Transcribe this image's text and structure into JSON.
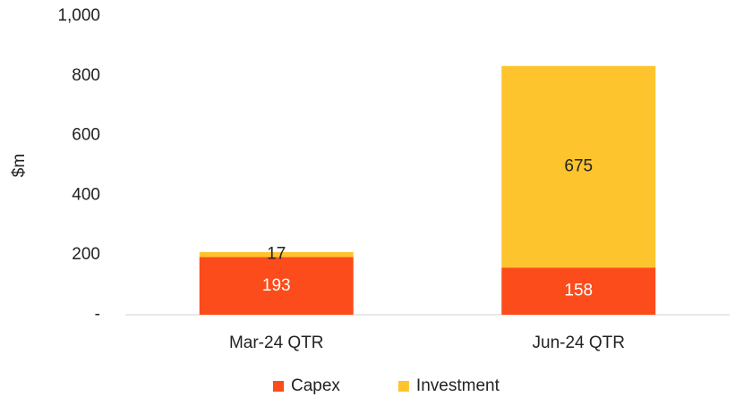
{
  "chart_data": {
    "type": "stacked_bar",
    "y_axis_label": "$m",
    "categories": [
      "Mar-24 QTR",
      "Jun-24 QTR"
    ],
    "series": [
      {
        "name": "Capex",
        "color": "#fc4c1c",
        "label_color": "#ffffff",
        "values": [
          193,
          158
        ]
      },
      {
        "name": "Investment",
        "color": "#fdc42d",
        "label_color": "#222222",
        "values": [
          17,
          675
        ]
      }
    ],
    "ylim": [
      0,
      1000
    ],
    "yticks": [
      {
        "value": 0,
        "label": "-"
      },
      200,
      400,
      600,
      800,
      {
        "value": 1000,
        "label": "1,000"
      }
    ],
    "legend": "bottom"
  }
}
